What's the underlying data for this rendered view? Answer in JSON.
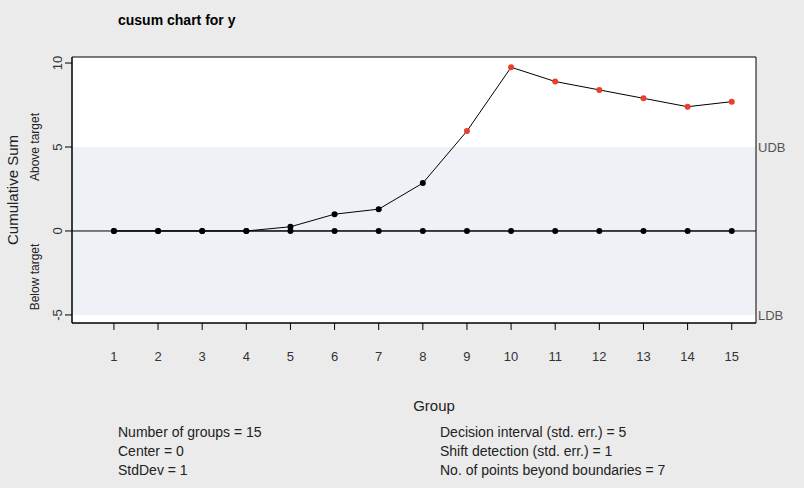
{
  "chart_data": {
    "type": "line",
    "title": "cusum chart for y",
    "x_label": "Group",
    "y_label": "Cumulative Sum",
    "x": [
      1,
      2,
      3,
      4,
      5,
      6,
      7,
      8,
      9,
      10,
      11,
      12,
      13,
      14,
      15
    ],
    "series": [
      {
        "name": "Above target",
        "color": "#000000",
        "colors": [
          "#000000",
          "#000000",
          "#000000",
          "#000000",
          "#000000",
          "#000000",
          "#000000",
          "#000000",
          "#e8402a",
          "#e8402a",
          "#e8402a",
          "#e8402a",
          "#e8402a",
          "#e8402a",
          "#e8402a"
        ],
        "marker": "circle",
        "values": [
          0,
          0,
          0,
          0,
          0.25,
          1.0,
          1.3,
          2.85,
          5.95,
          9.75,
          8.9,
          8.4,
          7.9,
          7.4,
          7.7
        ]
      },
      {
        "name": "Below target",
        "color": "#000000",
        "marker": "circle",
        "values": [
          0,
          0,
          0,
          0,
          0,
          0,
          0,
          0,
          0,
          0,
          0,
          0,
          0,
          0,
          0
        ]
      }
    ],
    "center": 0,
    "boundaries": [
      {
        "value": 5,
        "label": "UDB"
      },
      {
        "value": -5,
        "label": "LDB"
      }
    ],
    "xlim": [
      0.05,
      15.55
    ],
    "xticks": [
      1,
      2,
      3,
      4,
      5,
      6,
      7,
      8,
      9,
      10,
      11,
      12,
      13,
      14,
      15
    ],
    "ylim": [
      -5.48,
      10.36
    ],
    "yticks": [
      -5,
      0,
      5,
      10
    ],
    "legend": false,
    "stats": [
      [
        "Number of groups = 15",
        "Center = 0",
        "StdDev = 1"
      ],
      [
        "Decision interval (std. err.) = 5",
        "Shift detection (std. err.) = 1",
        "No. of points beyond boundaries = 7"
      ]
    ]
  }
}
